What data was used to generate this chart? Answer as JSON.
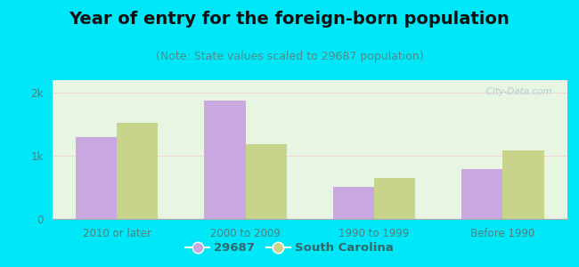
{
  "title": "Year of entry for the foreign-born population",
  "subtitle": "(Note: State values scaled to 29687 population)",
  "categories": [
    "2010 or later",
    "2000 to 2009",
    "1990 to 1999",
    "Before 1990"
  ],
  "values_29687": [
    1300,
    1880,
    510,
    790
  ],
  "values_sc": [
    1530,
    1180,
    650,
    1080
  ],
  "color_29687": "#c9a8e0",
  "color_sc": "#c8d48a",
  "background_outer": "#00e8f8",
  "background_inner_top": "#e8f5e2",
  "background_inner_bottom": "#f0f8ec",
  "ylim": [
    0,
    2200
  ],
  "yticks": [
    0,
    1000,
    2000
  ],
  "ytick_labels": [
    "0",
    "1k",
    "2k"
  ],
  "legend_label_1": "29687",
  "legend_label_2": "South Carolina",
  "bar_width": 0.32,
  "title_fontsize": 14,
  "subtitle_fontsize": 9,
  "watermark": "  City-Data.com",
  "tick_color": "#5a7a7a",
  "spine_color": "#aaaaaa"
}
